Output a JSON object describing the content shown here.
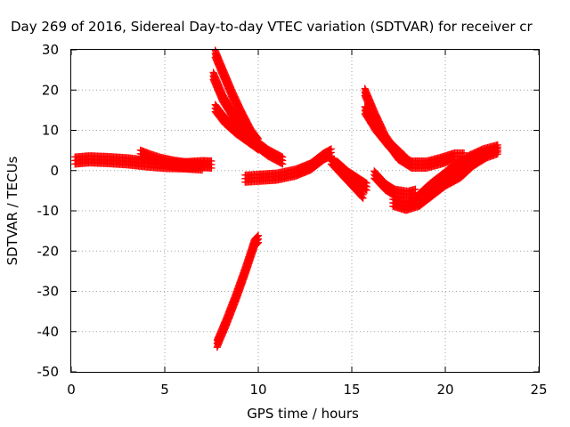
{
  "chart_data": {
    "type": "scatter",
    "title": "Day 269 of 2016, Sidereal Day-to-day VTEC variation (SDTVAR) for receiver cr",
    "xlabel": "GPS time / hours",
    "ylabel": "SDTVAR / TECUs",
    "xlim": [
      0,
      25
    ],
    "ylim": [
      -50,
      30
    ],
    "xticks": [
      0,
      5,
      10,
      15,
      20,
      25
    ],
    "yticks": [
      -50,
      -40,
      -30,
      -20,
      -10,
      0,
      10,
      20,
      30
    ],
    "grid": true,
    "marker": "+",
    "color": "#ff0000",
    "series": [
      {
        "values": [
          [
            0.2,
            2.5
          ],
          [
            1.0,
            2.8
          ],
          [
            2.0,
            2.6
          ],
          [
            3.0,
            2.3
          ],
          [
            4.0,
            1.8
          ],
          [
            5.0,
            1.4
          ],
          [
            6.0,
            1.3
          ],
          [
            7.0,
            1.6
          ],
          [
            7.5,
            1.5
          ]
        ]
      },
      {
        "values": [
          [
            3.7,
            4.2
          ],
          [
            4.2,
            3.3
          ],
          [
            4.8,
            2.4
          ],
          [
            5.5,
            1.7
          ],
          [
            6.3,
            1.2
          ],
          [
            7.0,
            1.0
          ]
        ]
      },
      {
        "values": [
          [
            7.7,
            29.0
          ],
          [
            8.1,
            24.5
          ],
          [
            8.6,
            19.0
          ],
          [
            9.1,
            14.0
          ],
          [
            9.6,
            9.5
          ],
          [
            10.0,
            7.0
          ]
        ]
      },
      {
        "values": [
          [
            7.6,
            23.5
          ],
          [
            8.1,
            18.0
          ],
          [
            8.7,
            13.5
          ],
          [
            9.3,
            10.0
          ],
          [
            9.8,
            7.0
          ],
          [
            10.5,
            4.5
          ],
          [
            11.3,
            2.5
          ]
        ]
      },
      {
        "values": [
          [
            7.7,
            15.5
          ],
          [
            8.2,
            12.5
          ],
          [
            8.8,
            10.0
          ],
          [
            9.4,
            8.0
          ],
          [
            10.0,
            6.0
          ]
        ]
      },
      {
        "values": [
          [
            7.8,
            -43.0
          ],
          [
            8.3,
            -37.5
          ],
          [
            8.8,
            -31.5
          ],
          [
            9.3,
            -25.0
          ],
          [
            9.8,
            -18.0
          ],
          [
            10.0,
            -17.0
          ]
        ]
      },
      {
        "values": [
          [
            9.3,
            -2.0
          ],
          [
            10.0,
            -1.8
          ],
          [
            11.0,
            -1.5
          ],
          [
            12.0,
            -0.5
          ],
          [
            12.8,
            1.0
          ],
          [
            13.5,
            3.5
          ],
          [
            13.9,
            4.5
          ]
        ]
      },
      {
        "values": [
          [
            13.9,
            2.5
          ],
          [
            14.4,
            0.0
          ],
          [
            15.0,
            -3.0
          ],
          [
            15.6,
            -6.0
          ]
        ]
      },
      {
        "values": [
          [
            14.2,
            1.5
          ],
          [
            14.8,
            -1.0
          ],
          [
            15.3,
            -2.5
          ],
          [
            15.8,
            -4.0
          ]
        ]
      },
      {
        "values": [
          [
            15.7,
            19.5
          ],
          [
            16.2,
            14.0
          ],
          [
            16.8,
            8.0
          ],
          [
            17.5,
            3.5
          ],
          [
            18.2,
            1.5
          ],
          [
            19.0,
            1.5
          ],
          [
            19.8,
            2.5
          ],
          [
            20.5,
            3.5
          ],
          [
            21.0,
            3.5
          ]
        ]
      },
      {
        "values": [
          [
            15.7,
            15.0
          ],
          [
            16.3,
            10.5
          ],
          [
            17.0,
            6.5
          ],
          [
            17.8,
            3.0
          ]
        ]
      },
      {
        "values": [
          [
            16.2,
            -1.0
          ],
          [
            16.8,
            -4.0
          ],
          [
            17.3,
            -5.5
          ],
          [
            18.0,
            -6.0
          ],
          [
            18.4,
            -5.5
          ]
        ]
      },
      {
        "values": [
          [
            17.2,
            -8.0
          ],
          [
            17.9,
            -9.0
          ],
          [
            18.6,
            -8.0
          ],
          [
            19.3,
            -5.5
          ],
          [
            20.0,
            -3.0
          ],
          [
            20.8,
            -1.0
          ],
          [
            21.5,
            2.0
          ],
          [
            22.2,
            4.0
          ],
          [
            22.8,
            5.0
          ]
        ]
      },
      {
        "values": [
          [
            18.5,
            -7.0
          ],
          [
            19.2,
            -4.0
          ],
          [
            19.9,
            -1.5
          ],
          [
            20.6,
            1.0
          ],
          [
            21.3,
            3.0
          ],
          [
            22.0,
            4.5
          ],
          [
            22.8,
            5.5
          ]
        ]
      }
    ]
  }
}
